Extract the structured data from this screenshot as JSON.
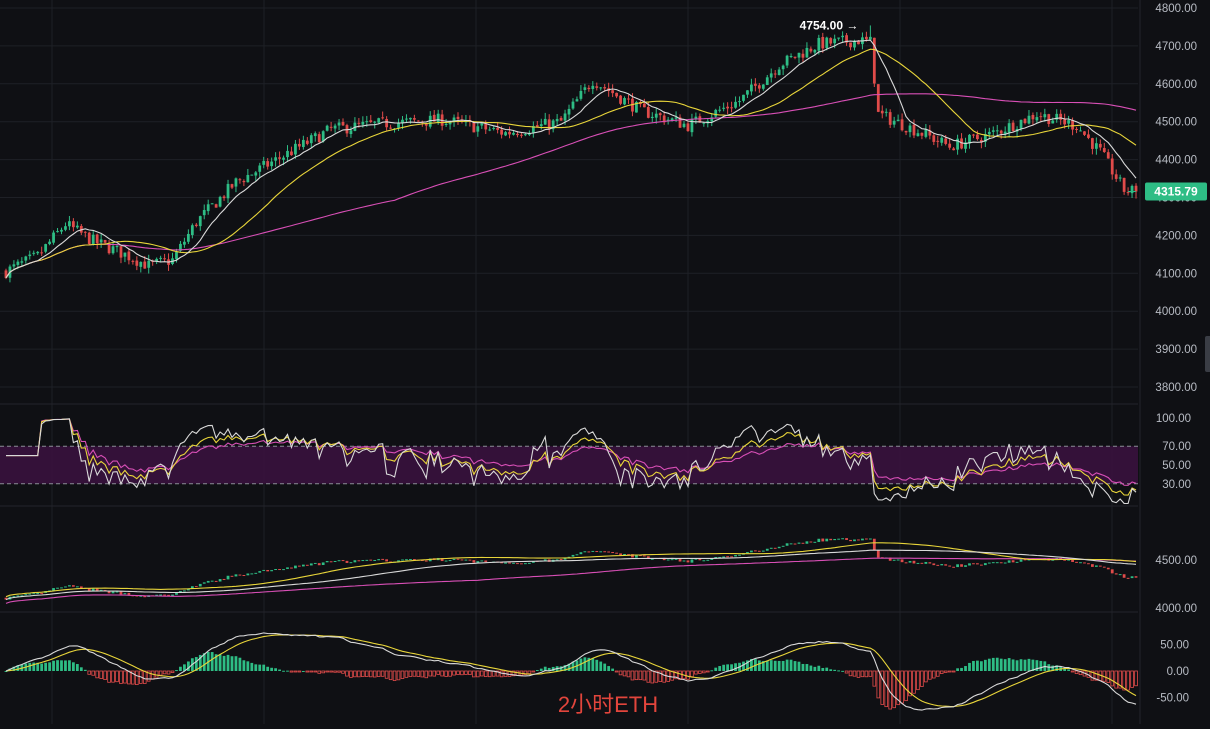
{
  "watermark": "2小时ETH",
  "colors": {
    "background": "#0f1014",
    "grid": "#1e2026",
    "up": "#2ebd85",
    "down": "#e04b4a",
    "ma_white": "#d9d9d9",
    "ma_yellow": "#e8d53a",
    "ma_pink": "#d84fb6",
    "rsi_band": "#3b1240"
  },
  "price_panel": {
    "y_ticks": [
      "4800.00",
      "4700.00",
      "4600.00",
      "4500.00",
      "4400.00",
      "4300.00",
      "4200.00",
      "4100.00",
      "4000.00",
      "3900.00",
      "3800.00"
    ],
    "high_label": "4754.00",
    "high_arrow": "→",
    "last_price": "4315.79"
  },
  "rsi_panel": {
    "y_ticks": [
      "100.00",
      "70.00",
      "50.00",
      "30.00"
    ],
    "upper": 70,
    "lower": 30
  },
  "mini_panel": {
    "y_ticks": [
      "4500.00",
      "4000.00"
    ]
  },
  "macd_panel": {
    "y_ticks": [
      "50.00",
      "0.00",
      "-50.00"
    ]
  },
  "chart_data": {
    "type": "candlestick",
    "symbol": "ETH",
    "interval": "2小时",
    "series": [
      {
        "name": "price",
        "anchors": [
          [
            0,
            4105
          ],
          [
            8,
            4145
          ],
          [
            15,
            4230
          ],
          [
            22,
            4185
          ],
          [
            30,
            4150
          ],
          [
            36,
            4120
          ],
          [
            42,
            4135
          ],
          [
            48,
            4235
          ],
          [
            58,
            4340
          ],
          [
            70,
            4410
          ],
          [
            82,
            4480
          ],
          [
            95,
            4495
          ],
          [
            110,
            4505
          ],
          [
            126,
            4470
          ],
          [
            140,
            4500
          ],
          [
            148,
            4610
          ],
          [
            160,
            4530
          ],
          [
            172,
            4490
          ],
          [
            185,
            4555
          ],
          [
            195,
            4650
          ],
          [
            205,
            4705
          ],
          [
            215,
            4715
          ],
          [
            218,
            4710
          ],
          [
            220,
            4520
          ],
          [
            230,
            4475
          ],
          [
            238,
            4435
          ],
          [
            248,
            4465
          ],
          [
            260,
            4520
          ],
          [
            270,
            4490
          ],
          [
            276,
            4420
          ],
          [
            282,
            4320
          ],
          [
            285,
            4316
          ]
        ]
      },
      {
        "name": "ma_short",
        "period": 9
      },
      {
        "name": "ma_mid",
        "period": 26
      },
      {
        "name": "ma_long",
        "period": 99
      },
      {
        "name": "rsi"
      },
      {
        "name": "macd_hist"
      }
    ],
    "candle_count": 286,
    "price_ylim": [
      3770,
      4820
    ],
    "price_high": 4754.0,
    "last_close": 4315.79,
    "rsi_ylim": [
      0,
      100
    ],
    "rsi_bands": [
      30,
      70
    ],
    "macd_ylim": [
      -70,
      75
    ],
    "grid": true
  }
}
